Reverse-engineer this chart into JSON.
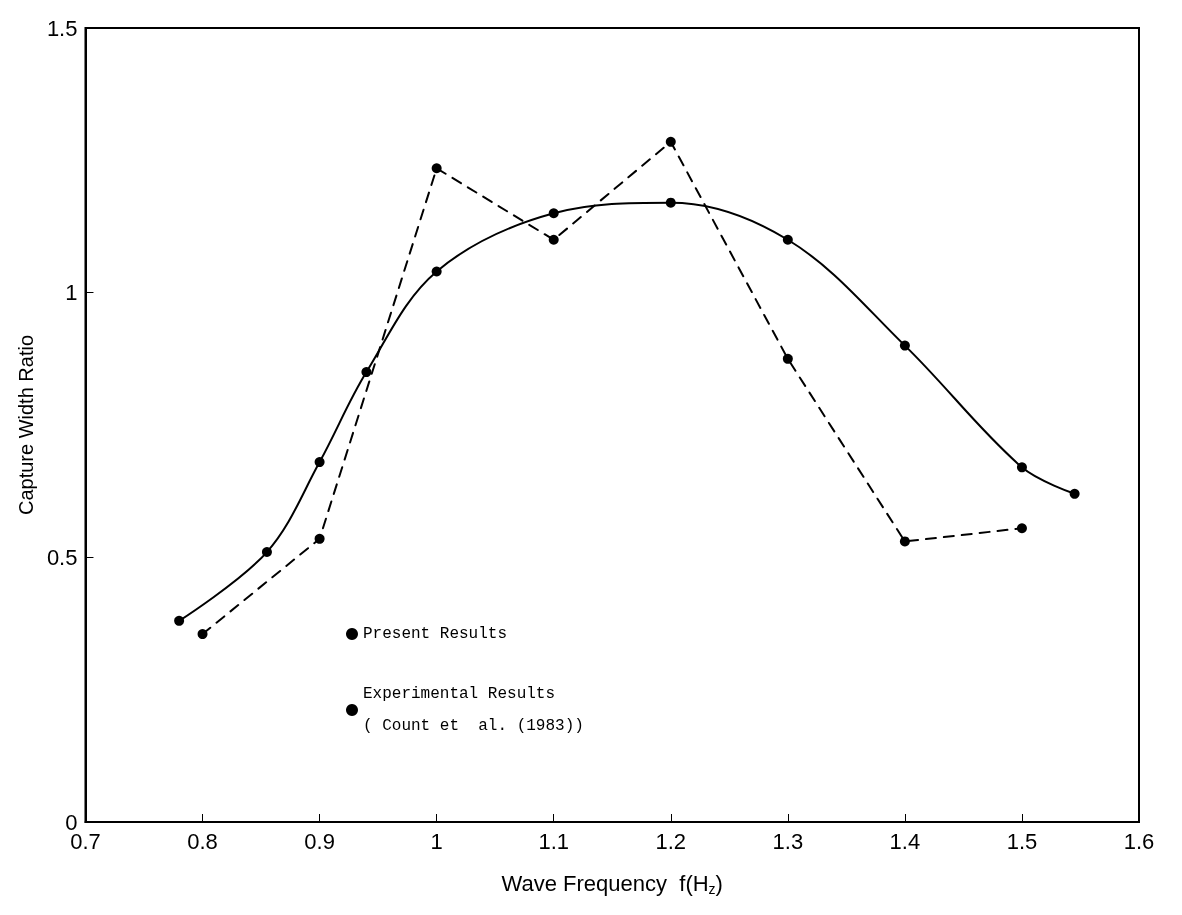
{
  "chart_data": {
    "type": "line",
    "xlabel": "Wave Frequency  f(H$_{z}$)",
    "ylabel": "Capture Width Ratio",
    "xlim": [
      0.7,
      1.6
    ],
    "xticks": [
      0.7,
      0.8,
      0.9,
      1,
      1.1,
      1.2,
      1.3,
      1.4,
      1.5,
      1.6
    ],
    "ylim": [
      0,
      1.5
    ],
    "yticks": [
      0,
      0.5,
      1,
      1.5
    ],
    "grid": false,
    "legend": "bottom left",
    "marker": "circle",
    "series": [
      {
        "name": "Present Results",
        "color": "#000000",
        "line_style": "solid",
        "x": [
          0.78,
          0.855,
          0.9,
          0.94,
          1.0,
          1.1,
          1.2,
          1.3,
          1.4,
          1.5,
          1.545
        ],
        "values": [
          0.38,
          0.51,
          0.68,
          0.85,
          1.04,
          1.15,
          1.17,
          1.1,
          0.9,
          0.67,
          0.62
        ]
      },
      {
        "name": "Experimental Results\n( Count et  al. (1983))",
        "color": "#000000",
        "line_style": "dashed",
        "x": [
          0.8,
          0.9,
          1.0,
          1.1,
          1.2,
          1.3,
          1.4,
          1.5
        ],
        "values": [
          0.355,
          0.535,
          1.235,
          1.1,
          1.285,
          0.875,
          0.53,
          0.555
        ]
      }
    ]
  }
}
